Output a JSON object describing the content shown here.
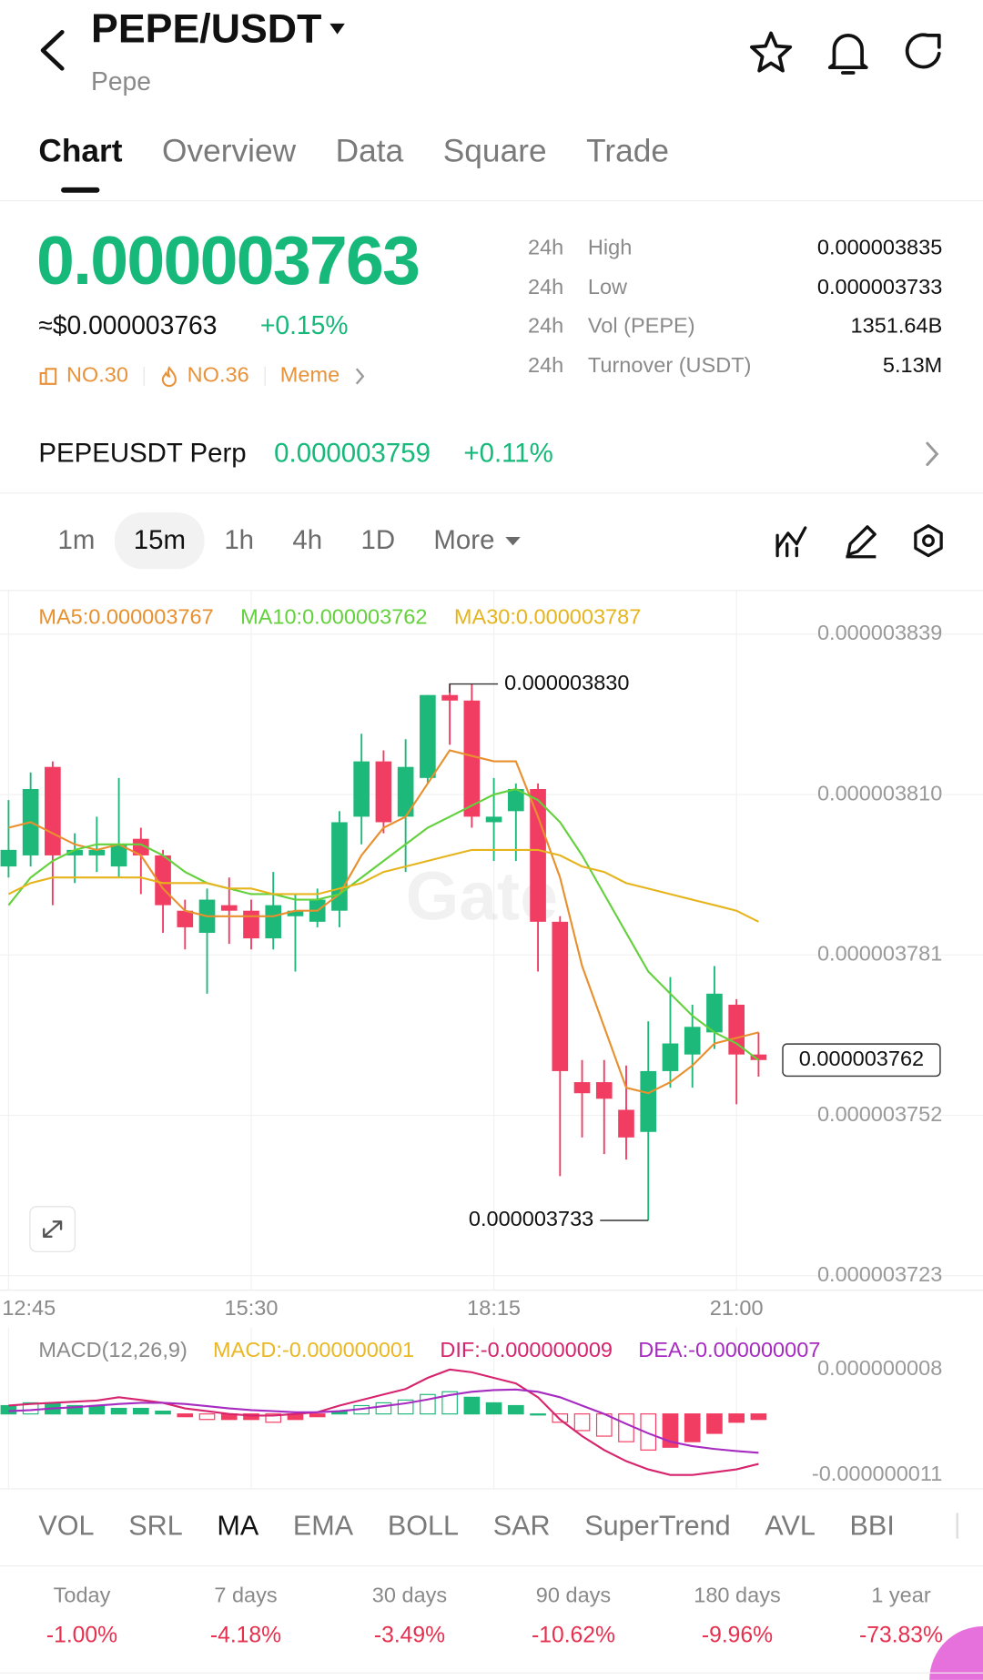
{
  "header": {
    "title": "PEPE/USDT",
    "subtitle": "Pepe"
  },
  "tabs": {
    "items": [
      "Chart",
      "Overview",
      "Data",
      "Square",
      "Trade"
    ],
    "active": 0
  },
  "ticker": {
    "price": "0.000003763",
    "usd_price": "≈$0.000003763",
    "change": "+0.15%",
    "tags": [
      "NO.30",
      "NO.36",
      "Meme"
    ],
    "stats": [
      {
        "period": "24h",
        "label": "High",
        "value": "0.000003835"
      },
      {
        "period": "24h",
        "label": "Low",
        "value": "0.000003733"
      },
      {
        "period": "24h",
        "label": "Vol (PEPE)",
        "value": "1351.64B"
      },
      {
        "period": "24h",
        "label": "Turnover (USDT)",
        "value": "5.13M"
      }
    ]
  },
  "perp": {
    "name": "PEPEUSDT Perp",
    "price": "0.000003759",
    "change": "+0.11%"
  },
  "intervals": {
    "items": [
      "1m",
      "15m",
      "1h",
      "4h",
      "1D",
      "More"
    ],
    "active": 1
  },
  "chart_data": [
    {
      "type": "candlestick",
      "watermark": "Gate",
      "categories": [
        "12:45",
        null,
        null,
        null,
        null,
        null,
        null,
        null,
        null,
        null,
        null,
        "15:30",
        null,
        null,
        null,
        null,
        null,
        null,
        null,
        null,
        null,
        null,
        "18:15",
        null,
        null,
        null,
        null,
        null,
        null,
        null,
        null,
        null,
        null,
        "21:00",
        null
      ],
      "open": [
        3.797e-06,
        3.799e-06,
        3.815e-06,
        3.799e-06,
        3.799e-06,
        3.797e-06,
        3.802e-06,
        3.799e-06,
        3.789e-06,
        3.785e-06,
        3.79e-06,
        3.789e-06,
        3.784e-06,
        3.788e-06,
        3.787e-06,
        3.789e-06,
        3.806e-06,
        3.816e-06,
        3.806e-06,
        3.813e-06,
        3.828e-06,
        3.827e-06,
        3.805e-06,
        3.807e-06,
        3.811e-06,
        3.787e-06,
        3.758e-06,
        3.758e-06,
        3.753e-06,
        3.749e-06,
        3.76e-06,
        3.763e-06,
        3.767e-06,
        3.772e-06,
        3.763e-06
      ],
      "high": [
        3.809e-06,
        3.814e-06,
        3.816e-06,
        3.803e-06,
        3.806e-06,
        3.813e-06,
        3.804e-06,
        3.8e-06,
        3.791e-06,
        3.793e-06,
        3.795e-06,
        3.791e-06,
        3.796e-06,
        3.792e-06,
        3.793e-06,
        3.807e-06,
        3.821e-06,
        3.818e-06,
        3.82e-06,
        3.828e-06,
        3.83e-06,
        3.83e-06,
        3.813e-06,
        3.812e-06,
        3.812e-06,
        3.788e-06,
        3.762e-06,
        3.762e-06,
        3.761e-06,
        3.769e-06,
        3.777e-06,
        3.772e-06,
        3.779e-06,
        3.773e-06,
        3.767e-06
      ],
      "low": [
        3.795e-06,
        3.797e-06,
        3.79e-06,
        3.794e-06,
        3.796e-06,
        3.795e-06,
        3.792e-06,
        3.785e-06,
        3.782e-06,
        3.774e-06,
        3.783e-06,
        3.782e-06,
        3.782e-06,
        3.778e-06,
        3.786e-06,
        3.786e-06,
        3.801e-06,
        3.803e-06,
        3.796e-06,
        3.812e-06,
        3.819e-06,
        3.804e-06,
        3.798e-06,
        3.798e-06,
        3.778e-06,
        3.741e-06,
        3.748e-06,
        3.745e-06,
        3.744e-06,
        3.733e-06,
        3.757e-06,
        3.757e-06,
        3.764e-06,
        3.754e-06,
        3.759e-06
      ],
      "close": [
        3.8e-06,
        3.811e-06,
        3.799e-06,
        3.8e-06,
        3.8e-06,
        3.801e-06,
        3.799e-06,
        3.79e-06,
        3.786e-06,
        3.791e-06,
        3.789e-06,
        3.784e-06,
        3.79e-06,
        3.789e-06,
        3.791e-06,
        3.805e-06,
        3.816e-06,
        3.805e-06,
        3.815e-06,
        3.828e-06,
        3.827e-06,
        3.806e-06,
        3.806e-06,
        3.811e-06,
        3.787e-06,
        3.76e-06,
        3.756e-06,
        3.755e-06,
        3.748e-06,
        3.76e-06,
        3.765e-06,
        3.768e-06,
        3.774e-06,
        3.763e-06,
        3.762e-06
      ],
      "up_color": "#1db97a",
      "down_color": "#f23d63",
      "ma": [
        {
          "name": "MA5:0.000003767",
          "color": "#e8902e",
          "values": [
            3.804e-06,
            3.805e-06,
            3.803e-06,
            3.801e-06,
            3.8e-06,
            3.801e-06,
            3.799e-06,
            3.793e-06,
            3.789e-06,
            3.788e-06,
            3.788e-06,
            3.788e-06,
            3.788e-06,
            3.789e-06,
            3.789e-06,
            3.792e-06,
            3.799e-06,
            3.804e-06,
            3.806e-06,
            3.812e-06,
            3.818e-06,
            3.817e-06,
            3.816e-06,
            3.816e-06,
            3.806e-06,
            3.795e-06,
            3.779e-06,
            3.768e-06,
            3.757e-06,
            3.756e-06,
            3.758e-06,
            3.761e-06,
            3.765e-06,
            3.766e-06,
            3.767e-06
          ]
        },
        {
          "name": "MA10:0.000003762",
          "color": "#62d13c",
          "values": [
            3.79e-06,
            3.795e-06,
            3.798e-06,
            3.8e-06,
            3.801e-06,
            3.801e-06,
            3.801e-06,
            3.799e-06,
            3.796e-06,
            3.794e-06,
            3.793e-06,
            3.792e-06,
            3.792e-06,
            3.791e-06,
            3.791e-06,
            3.792e-06,
            3.795e-06,
            3.798e-06,
            3.801e-06,
            3.804e-06,
            3.806e-06,
            3.808e-06,
            3.81e-06,
            3.811e-06,
            3.809e-06,
            3.805e-06,
            3.799e-06,
            3.792e-06,
            3.785e-06,
            3.778e-06,
            3.774e-06,
            3.77e-06,
            3.767e-06,
            3.765e-06,
            3.762e-06
          ]
        },
        {
          "name": "MA30:0.000003787",
          "color": "#e6b41c",
          "values": [
            3.792e-06,
            3.794e-06,
            3.795e-06,
            3.795e-06,
            3.795e-06,
            3.795e-06,
            3.795e-06,
            3.794e-06,
            3.794e-06,
            3.794e-06,
            3.793e-06,
            3.793e-06,
            3.792e-06,
            3.792e-06,
            3.792e-06,
            3.793e-06,
            3.794e-06,
            3.796e-06,
            3.797e-06,
            3.798e-06,
            3.799e-06,
            3.8e-06,
            3.8e-06,
            3.8e-06,
            3.8e-06,
            3.799e-06,
            3.797e-06,
            3.796e-06,
            3.794e-06,
            3.793e-06,
            3.792e-06,
            3.791e-06,
            3.79e-06,
            3.789e-06,
            3.787e-06
          ]
        }
      ],
      "ylim": [
        3.72e-06,
        3.847e-06
      ],
      "yticks": [
        {
          "value": 3.839e-06,
          "label": "0.000003839"
        },
        {
          "value": 3.81e-06,
          "label": "0.000003810"
        },
        {
          "value": 3.781e-06,
          "label": "0.000003781"
        },
        {
          "value": 3.752e-06,
          "label": "0.000003752"
        },
        {
          "value": 3.723e-06,
          "label": "0.000003723"
        }
      ],
      "annotations": {
        "high": {
          "value": 3.83e-06,
          "label": "0.000003830"
        },
        "low": {
          "value": 3.733e-06,
          "label": "0.000003733"
        },
        "last": {
          "value": 3.762e-06,
          "label": "0.000003762"
        }
      },
      "grid": true
    },
    {
      "type": "macd",
      "title": "MACD(12,26,9)",
      "up_color": "#1db97a",
      "down_color": "#f23d63",
      "series": [
        {
          "name": "MACD:-0.000000001",
          "color": "#e9b824",
          "values": [
            1.5e-09,
            2e-09,
            2e-09,
            1.5e-09,
            1.5e-09,
            1e-09,
            1e-09,
            5e-10,
            -5e-10,
            -1e-09,
            -1e-09,
            -1e-09,
            -1.5e-09,
            -1e-09,
            -5e-10,
            5e-10,
            1.5e-09,
            2e-09,
            2.5e-09,
            3.5e-09,
            4e-09,
            3e-09,
            2e-09,
            1.5e-09,
            0,
            -1.5e-09,
            -3e-09,
            -4e-09,
            -5e-09,
            -6.5e-09,
            -6e-09,
            -5e-09,
            -3.5e-09,
            -1.5e-09,
            -1e-09
          ]
        },
        {
          "name": "DIF:-0.000000009",
          "color": "#d6246e",
          "values": [
            1.5e-09,
            1.8e-09,
            2e-09,
            2.2e-09,
            2.4e-09,
            3e-09,
            2.5e-09,
            2e-09,
            1e-09,
            5e-10,
            0,
            -3e-10,
            -3e-10,
            0,
            3e-10,
            1.5e-09,
            2.5e-09,
            3.5e-09,
            4.5e-09,
            6.5e-09,
            8e-09,
            7.5e-09,
            6.5e-09,
            5.5e-09,
            3e-09,
            -1e-09,
            -4e-09,
            -6.5e-09,
            -8.5e-09,
            -1e-08,
            -1.1e-08,
            -1.1e-08,
            -1.05e-08,
            -1e-08,
            -9e-09
          ]
        },
        {
          "name": "DEA:-0.000000007",
          "color": "#a62bc0",
          "values": [
            5e-10,
            7e-10,
            1e-09,
            1.2e-09,
            1.5e-09,
            1.8e-09,
            2e-09,
            2e-09,
            1.8e-09,
            1.4e-09,
            1e-09,
            7e-10,
            5e-10,
            3e-10,
            3e-10,
            5e-10,
            9e-10,
            1.4e-09,
            1.9e-09,
            2.6e-09,
            3.4e-09,
            4e-09,
            4.3e-09,
            4.4e-09,
            4e-09,
            3e-09,
            1.5e-09,
            0,
            -1.8e-09,
            -3.5e-09,
            -5e-09,
            -5.8e-09,
            -6.3e-09,
            -6.7e-09,
            -7e-09
          ]
        }
      ],
      "ylim": [
        -1.3e-08,
        1.4e-08
      ],
      "yticks": [
        {
          "value": 8e-09,
          "label": "0.000000008"
        },
        {
          "value": -1.1e-08,
          "label": "-0.000000011"
        }
      ]
    }
  ],
  "indicators": {
    "items": [
      "VOL",
      "SRL",
      "MA",
      "EMA",
      "BOLL",
      "SAR",
      "SuperTrend",
      "AVL",
      "BBI"
    ],
    "active": 2
  },
  "performance": [
    {
      "period": "Today",
      "change": "-1.00%"
    },
    {
      "period": "7 days",
      "change": "-4.18%"
    },
    {
      "period": "30 days",
      "change": "-3.49%"
    },
    {
      "period": "90 days",
      "change": "-10.62%"
    },
    {
      "period": "180 days",
      "change": "-9.96%"
    },
    {
      "period": "1 year",
      "change": "-73.83%"
    }
  ]
}
